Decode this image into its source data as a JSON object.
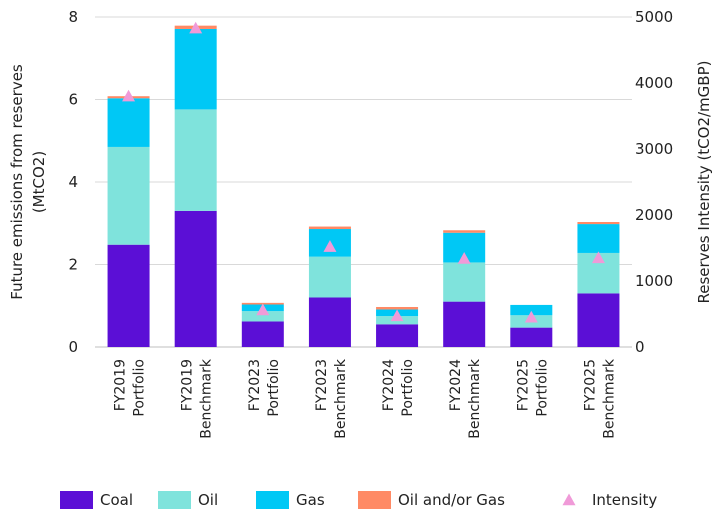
{
  "chart_data": {
    "type": "bar",
    "stacked": true,
    "categories": [
      [
        "FY2019",
        "Portfolio"
      ],
      [
        "FY2019",
        "Benchmark"
      ],
      [
        "FY2023",
        "Portfolio"
      ],
      [
        "FY2023",
        "Benchmark"
      ],
      [
        "FY2024",
        "Portfolio"
      ],
      [
        "FY2024",
        "Benchmark"
      ],
      [
        "FY2025",
        "Portfolio"
      ],
      [
        "FY2025",
        "Benchmark"
      ]
    ],
    "series": [
      {
        "name": "Coal",
        "color": "#5B0FD6",
        "values": [
          2.48,
          3.3,
          0.62,
          1.2,
          0.55,
          1.1,
          0.47,
          1.3
        ]
      },
      {
        "name": "Oil",
        "color": "#7FE3DC",
        "values": [
          2.37,
          2.46,
          0.25,
          0.99,
          0.2,
          0.95,
          0.3,
          0.98
        ]
      },
      {
        "name": "Gas",
        "color": "#00C8F5",
        "values": [
          1.18,
          1.95,
          0.16,
          0.67,
          0.16,
          0.72,
          0.25,
          0.7
        ]
      },
      {
        "name": "Oil and/or Gas",
        "color": "#FF8A65",
        "values": [
          0.05,
          0.08,
          0.04,
          0.06,
          0.06,
          0.06,
          0.0,
          0.05
        ]
      }
    ],
    "intensity": {
      "name": "Intensity",
      "color": "#F09AD8",
      "values": [
        3800,
        4830,
        560,
        1520,
        470,
        1340,
        450,
        1350
      ]
    },
    "ylabel": "Future emissions from reserves\n(MtCO2)",
    "y2label": "Reserves Intensity (tCO2/mGBP)",
    "ylim": [
      0,
      8
    ],
    "yticks": [
      0,
      2,
      4,
      6,
      8
    ],
    "y2lim": [
      0,
      5000
    ],
    "y2ticks": [
      0,
      1000,
      2000,
      3000,
      4000,
      5000
    ],
    "grid": true,
    "legend": "bottom"
  }
}
